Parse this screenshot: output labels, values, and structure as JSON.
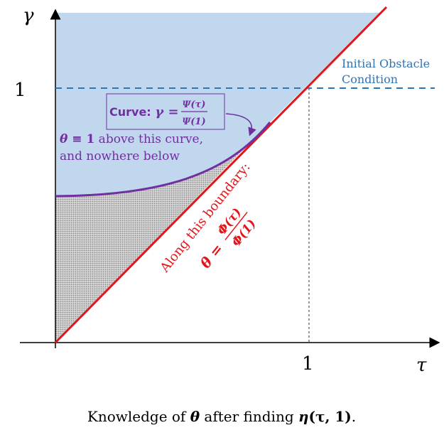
{
  "colors": {
    "region_fill": "#c0d7ee",
    "axis": "#000000",
    "diagonal": "#e3151a",
    "curve": "#7030a0",
    "obstacle_line": "#2e75b6",
    "hatch_gray": "#9a9a9a"
  },
  "axes": {
    "y_label": "γ",
    "x_label": "τ",
    "y_tick": "1",
    "x_tick": "1"
  },
  "obstacle": {
    "line1": "Initial Obstacle",
    "line2": "Condition"
  },
  "curve_box": {
    "prefix": "Curve: ",
    "gamma": "γ",
    "equals": " = ",
    "numerator": "Ψ(τ)",
    "denominator": "Ψ(1)"
  },
  "curve_note": {
    "theta": "θ",
    "equiv": " ≡ ",
    "one": "1",
    "rest1": " above this curve,",
    "line2": "and nowhere below"
  },
  "boundary": {
    "label": "Along this boundary:",
    "theta": "θ",
    "equals": " = ",
    "numerator": "Φ(τ)",
    "denominator": "Φ(1)"
  },
  "caption": {
    "pre": "Knowledge of ",
    "theta": "θ",
    "mid": " after finding ",
    "eta": "η",
    "args": "(τ, 1)",
    "end": "."
  }
}
